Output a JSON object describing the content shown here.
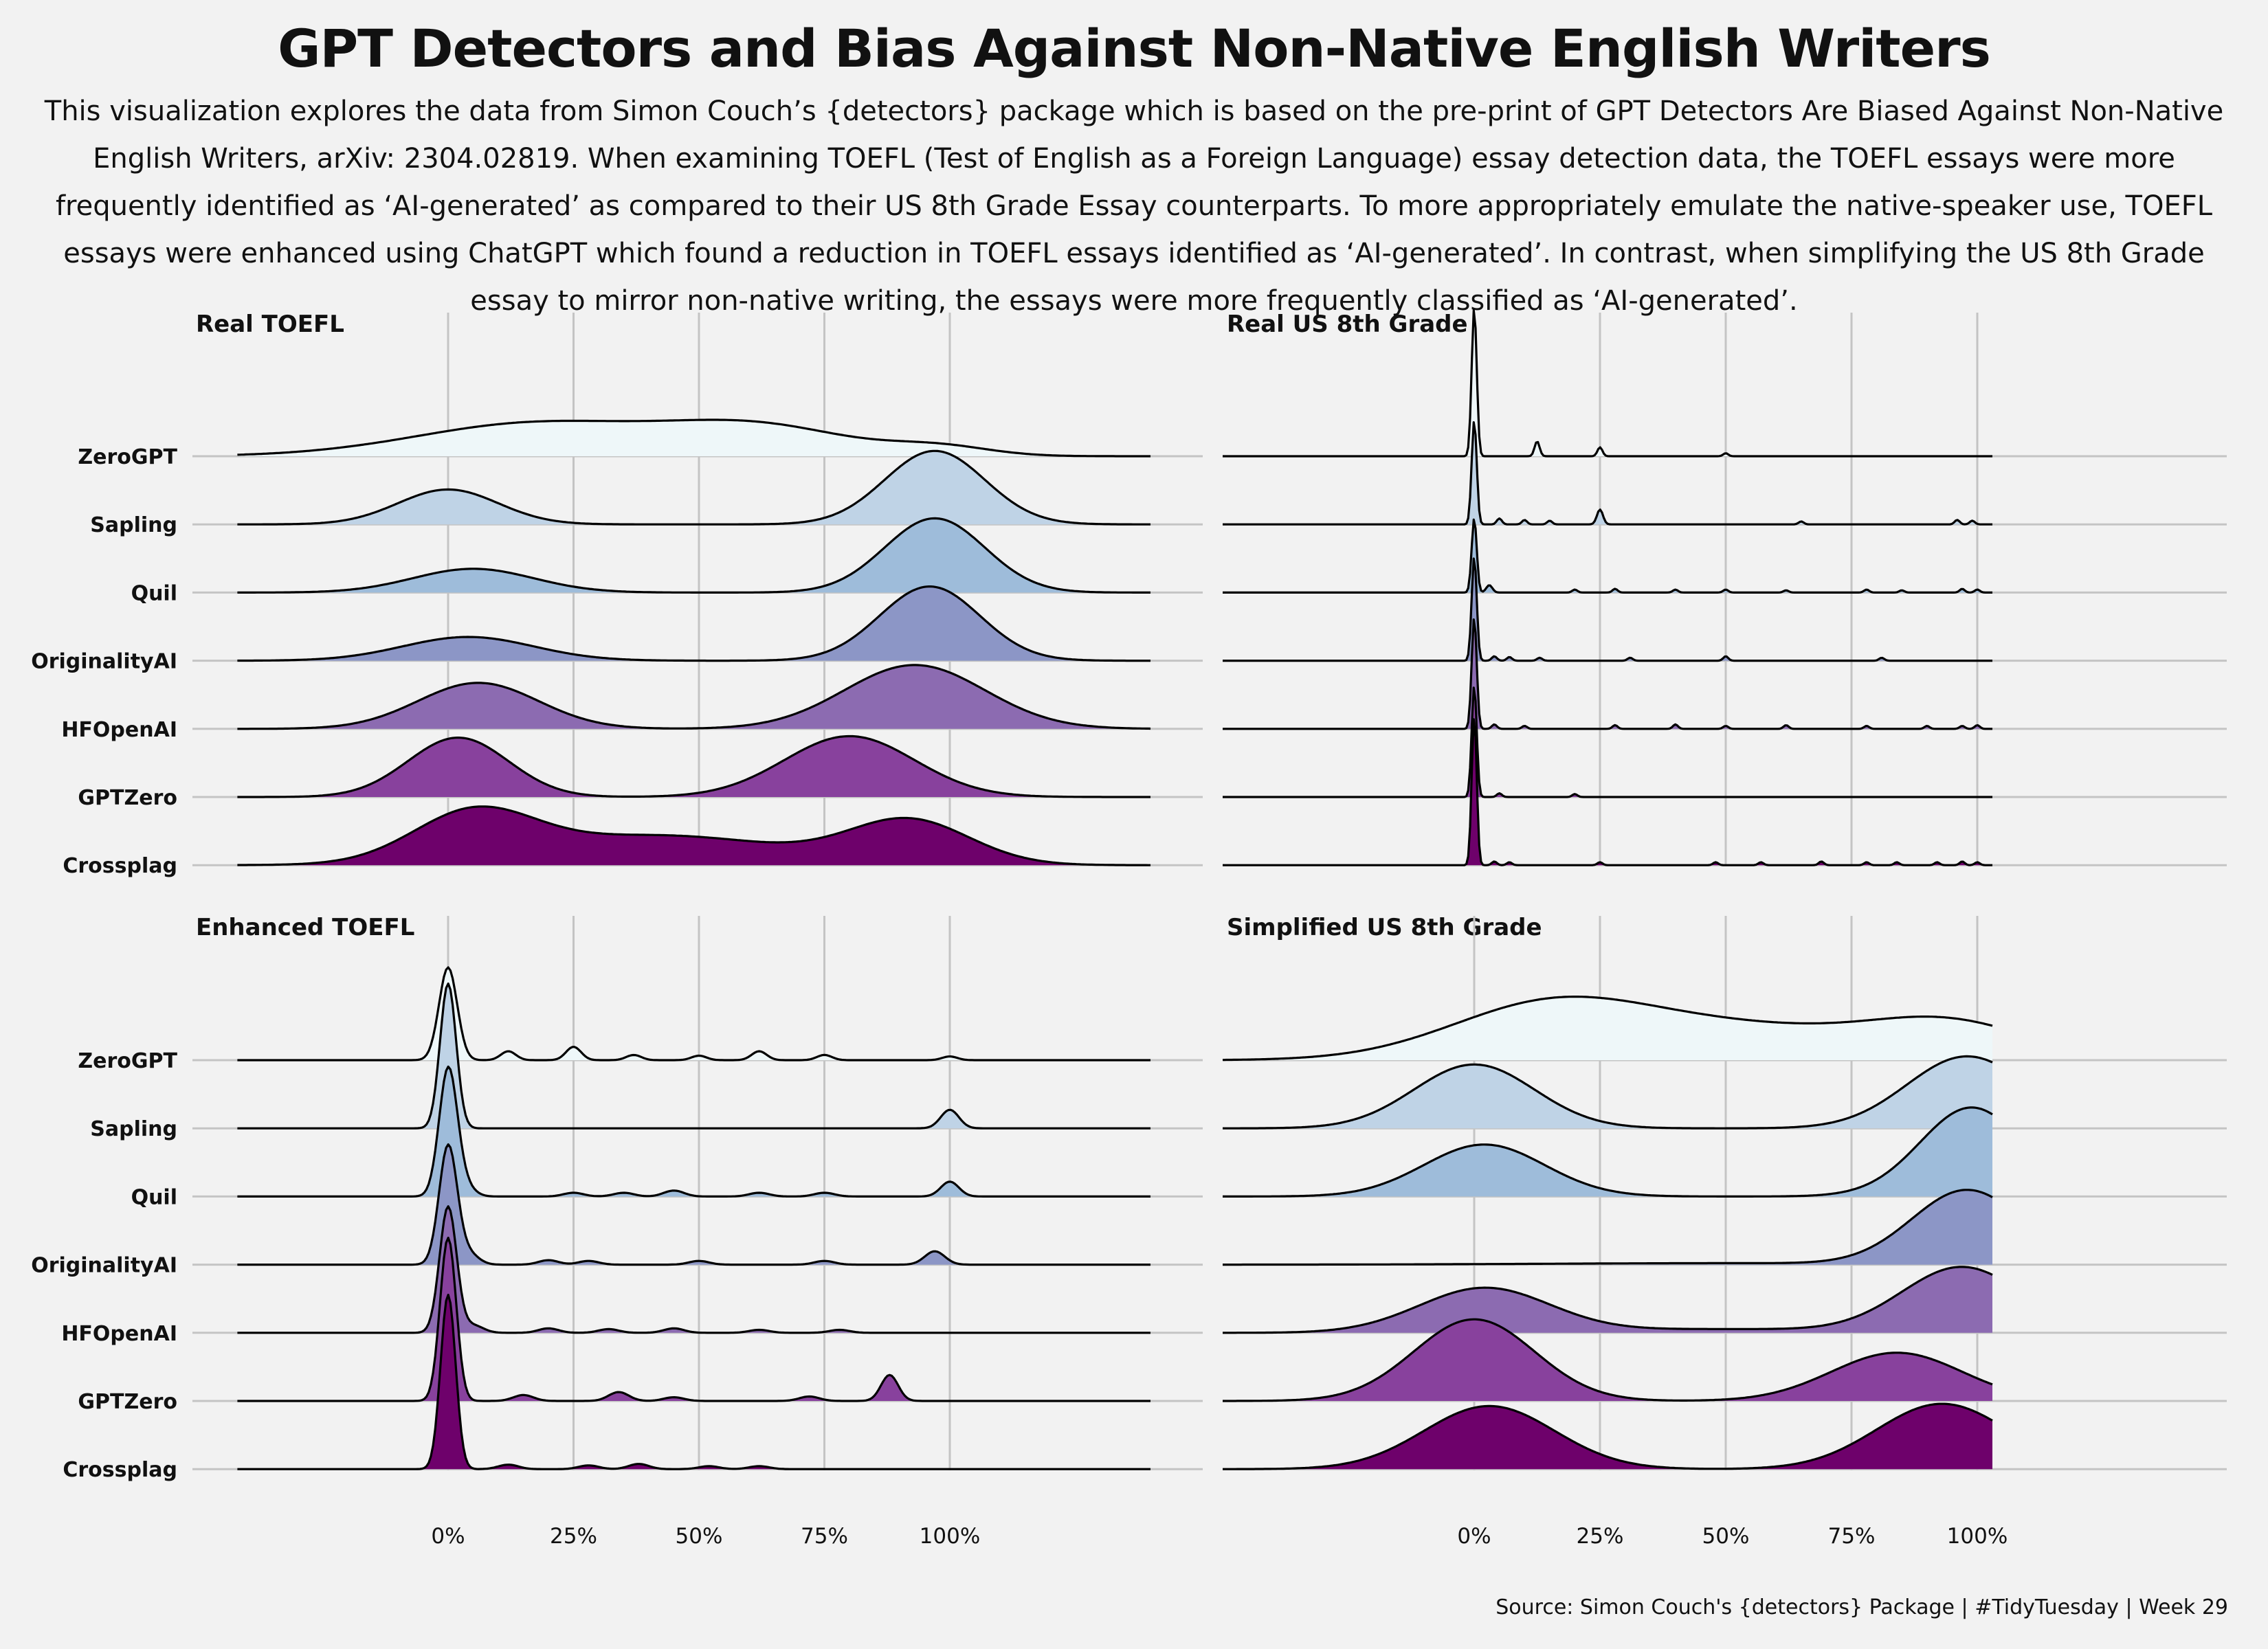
{
  "chart_data": {
    "type": "ridgeline",
    "title": "GPT Detectors and Bias Against Non-Native English Writers",
    "subtitle": "This visualization explores the data from Simon Couch’s {detectors} package which is based on the pre-print of GPT Detectors Are Biased Against Non-Native English Writers, arXiv: 2304.02819. When examining TOEFL (Test of English as a Foreign Language) essay detection data, the TOEFL essays were more frequently identified as ‘AI-generated’ as compared to their US 8th Grade Essay counterparts. To more appropriately emulate the native-speaker use, TOEFL essays were enhanced using ChatGPT which found a reduction in TOEFL essays identified as ‘AI-generated’. In contrast, when simplifying the US 8th Grade essay to mirror non-native writing, the essays were more frequently classified as ‘AI-generated’.",
    "caption": "Source: Simon Couch's {detectors} Package | #TidyTuesday | Week 29",
    "detectors": [
      "ZeroGPT",
      "Sapling",
      "Quil",
      "OriginalityAI",
      "HFOpenAI",
      "GPTZero",
      "Crossplag"
    ],
    "fill_colors": [
      "#eef7f9",
      "#bfd3e6",
      "#9ebcda",
      "#8c96c6",
      "#8c6bb1",
      "#88419d",
      "#6e016b"
    ],
    "x_ticks": [
      0,
      0.25,
      0.5,
      0.75,
      1
    ],
    "x_tick_labels": [
      "0%",
      "25%",
      "50%",
      "75%",
      "100%"
    ],
    "grid": true,
    "panels": [
      {
        "title": "Real TOEFL",
        "x_range": [
          -0.42,
          1.4
        ],
        "ridges": {
          "ZeroGPT": [
            [
              0.18,
              0.24,
              0.45
            ],
            [
              0.62,
              0.18,
              0.38
            ],
            [
              0.98,
              0.1,
              0.12
            ]
          ],
          "Sapling": [
            [
              0.0,
              0.1,
              0.47
            ],
            [
              0.97,
              0.1,
              0.99
            ]
          ],
          "Quil": [
            [
              0.05,
              0.12,
              0.32
            ],
            [
              0.97,
              0.1,
              1.0
            ]
          ],
          "OriginalityAI": [
            [
              0.04,
              0.13,
              0.32
            ],
            [
              0.96,
              0.1,
              1.0
            ]
          ],
          "HFOpenAI": [
            [
              0.06,
              0.12,
              0.62
            ],
            [
              0.93,
              0.14,
              0.86
            ]
          ],
          "GPTZero": [
            [
              0.02,
              0.1,
              0.8
            ],
            [
              0.8,
              0.13,
              0.82
            ]
          ],
          "Crossplag": [
            [
              0.05,
              0.12,
              0.65
            ],
            [
              0.42,
              0.25,
              0.4
            ],
            [
              0.92,
              0.12,
              0.58
            ]
          ]
        }
      },
      {
        "title": "Real US 8th Grade",
        "x_range": [
          -0.5,
          1.03
        ],
        "ridges": {
          "ZeroGPT": [
            [
              0.0,
              0.005,
              2.0
            ],
            [
              0.125,
              0.005,
              0.2
            ],
            [
              0.25,
              0.005,
              0.12
            ],
            [
              0.5,
              0.005,
              0.04
            ]
          ],
          "Sapling": [
            [
              0.0,
              0.005,
              1.4
            ],
            [
              0.05,
              0.005,
              0.08
            ],
            [
              0.1,
              0.005,
              0.06
            ],
            [
              0.15,
              0.005,
              0.05
            ],
            [
              0.25,
              0.006,
              0.2
            ],
            [
              0.65,
              0.005,
              0.04
            ],
            [
              0.96,
              0.005,
              0.06
            ],
            [
              0.99,
              0.005,
              0.05
            ]
          ],
          "Quil": [
            [
              0.0,
              0.005,
              1.0
            ],
            [
              0.03,
              0.006,
              0.1
            ],
            [
              0.2,
              0.005,
              0.04
            ],
            [
              0.28,
              0.005,
              0.05
            ],
            [
              0.4,
              0.005,
              0.04
            ],
            [
              0.5,
              0.005,
              0.04
            ],
            [
              0.62,
              0.005,
              0.03
            ],
            [
              0.78,
              0.005,
              0.04
            ],
            [
              0.85,
              0.005,
              0.03
            ],
            [
              0.97,
              0.005,
              0.05
            ],
            [
              1.0,
              0.005,
              0.04
            ]
          ],
          "OriginalityAI": [
            [
              0.0,
              0.005,
              1.4
            ],
            [
              0.04,
              0.005,
              0.06
            ],
            [
              0.07,
              0.005,
              0.05
            ],
            [
              0.13,
              0.005,
              0.04
            ],
            [
              0.31,
              0.005,
              0.04
            ],
            [
              0.5,
              0.005,
              0.06
            ],
            [
              0.81,
              0.005,
              0.04
            ]
          ],
          "HFOpenAI": [
            [
              0.0,
              0.005,
              1.5
            ],
            [
              0.04,
              0.005,
              0.06
            ],
            [
              0.1,
              0.005,
              0.04
            ],
            [
              0.28,
              0.005,
              0.05
            ],
            [
              0.4,
              0.005,
              0.06
            ],
            [
              0.5,
              0.005,
              0.04
            ],
            [
              0.62,
              0.005,
              0.05
            ],
            [
              0.78,
              0.005,
              0.04
            ],
            [
              0.9,
              0.005,
              0.04
            ],
            [
              0.97,
              0.005,
              0.04
            ],
            [
              1.0,
              0.005,
              0.05
            ]
          ],
          "GPTZero": [
            [
              0.0,
              0.005,
              1.5
            ],
            [
              0.05,
              0.005,
              0.05
            ],
            [
              0.2,
              0.005,
              0.04
            ]
          ],
          "Crossplag": [
            [
              0.0,
              0.005,
              2.0
            ],
            [
              0.04,
              0.005,
              0.05
            ],
            [
              0.07,
              0.005,
              0.04
            ],
            [
              0.25,
              0.005,
              0.04
            ],
            [
              0.48,
              0.005,
              0.04
            ],
            [
              0.57,
              0.005,
              0.04
            ],
            [
              0.69,
              0.005,
              0.05
            ],
            [
              0.78,
              0.005,
              0.04
            ],
            [
              0.84,
              0.005,
              0.04
            ],
            [
              0.92,
              0.005,
              0.04
            ],
            [
              0.97,
              0.005,
              0.05
            ],
            [
              1.0,
              0.005,
              0.04
            ]
          ]
        }
      },
      {
        "title": "Enhanced TOEFL",
        "x_range": [
          -0.42,
          1.4
        ],
        "ridges": {
          "ZeroGPT": [
            [
              0.0,
              0.018,
              1.25
            ],
            [
              0.12,
              0.015,
              0.12
            ],
            [
              0.25,
              0.015,
              0.18
            ],
            [
              0.37,
              0.015,
              0.07
            ],
            [
              0.5,
              0.015,
              0.06
            ],
            [
              0.62,
              0.015,
              0.12
            ],
            [
              0.75,
              0.015,
              0.07
            ],
            [
              1.0,
              0.015,
              0.05
            ]
          ],
          "Sapling": [
            [
              0.0,
              0.016,
              1.95
            ],
            [
              1.0,
              0.018,
              0.25
            ]
          ],
          "Quil": [
            [
              0.0,
              0.018,
              1.7
            ],
            [
              0.03,
              0.02,
              0.15
            ],
            [
              0.25,
              0.02,
              0.05
            ],
            [
              0.35,
              0.02,
              0.05
            ],
            [
              0.45,
              0.02,
              0.08
            ],
            [
              0.62,
              0.02,
              0.05
            ],
            [
              0.75,
              0.02,
              0.05
            ],
            [
              1.0,
              0.018,
              0.2
            ]
          ],
          "OriginalityAI": [
            [
              0.0,
              0.018,
              1.6
            ],
            [
              0.04,
              0.02,
              0.15
            ],
            [
              0.2,
              0.02,
              0.06
            ],
            [
              0.28,
              0.02,
              0.05
            ],
            [
              0.5,
              0.02,
              0.05
            ],
            [
              0.75,
              0.02,
              0.05
            ],
            [
              0.97,
              0.02,
              0.18
            ]
          ],
          "HFOpenAI": [
            [
              0.0,
              0.017,
              1.7
            ],
            [
              0.05,
              0.02,
              0.1
            ],
            [
              0.2,
              0.02,
              0.06
            ],
            [
              0.32,
              0.02,
              0.05
            ],
            [
              0.45,
              0.02,
              0.06
            ],
            [
              0.62,
              0.02,
              0.04
            ],
            [
              0.78,
              0.02,
              0.04
            ]
          ],
          "GPTZero": [
            [
              0.0,
              0.016,
              2.2
            ],
            [
              0.15,
              0.02,
              0.08
            ],
            [
              0.34,
              0.02,
              0.12
            ],
            [
              0.45,
              0.02,
              0.05
            ],
            [
              0.72,
              0.02,
              0.06
            ],
            [
              0.88,
              0.017,
              0.35
            ]
          ],
          "Crossplag": [
            [
              0.0,
              0.015,
              2.35
            ],
            [
              0.12,
              0.02,
              0.06
            ],
            [
              0.28,
              0.02,
              0.05
            ],
            [
              0.38,
              0.02,
              0.07
            ],
            [
              0.52,
              0.02,
              0.04
            ],
            [
              0.62,
              0.02,
              0.04
            ]
          ]
        }
      },
      {
        "title": "Simplified US 8th Grade",
        "x_range": [
          -0.5,
          1.03
        ],
        "ridges": {
          "ZeroGPT": [
            [
              0.15,
              0.2,
              0.72
            ],
            [
              0.55,
              0.25,
              0.42
            ],
            [
              0.95,
              0.16,
              0.45
            ]
          ],
          "Sapling": [
            [
              0.0,
              0.12,
              0.86
            ],
            [
              0.98,
              0.12,
              0.97
            ]
          ],
          "Quil": [
            [
              0.02,
              0.12,
              0.7
            ],
            [
              0.99,
              0.1,
              1.0
            ],
            [
              0.98,
              0.12,
              0.2
            ]
          ],
          "OriginalityAI": [
            [
              0.98,
              0.11,
              1.0
            ],
            [
              0.5,
              0.35,
              0.02
            ]
          ],
          "HFOpenAI": [
            [
              0.02,
              0.13,
              0.6
            ],
            [
              0.97,
              0.12,
              0.88
            ],
            [
              0.5,
              0.25,
              0.05
            ]
          ],
          "GPTZero": [
            [
              0.0,
              0.12,
              1.1
            ],
            [
              0.84,
              0.13,
              0.65
            ]
          ],
          "Crossplag": [
            [
              0.03,
              0.13,
              0.85
            ],
            [
              0.93,
              0.13,
              0.88
            ]
          ]
        }
      }
    ]
  }
}
